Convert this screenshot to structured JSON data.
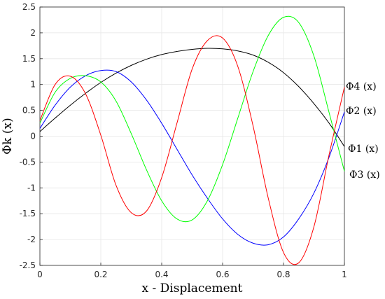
{
  "chart_data": {
    "type": "line",
    "xlabel": "x - Displacement",
    "ylabel": "Φk (x)",
    "xlim": [
      0,
      1
    ],
    "ylim": [
      -2.5,
      2.5
    ],
    "grid": true,
    "x_ticks": [
      "0",
      "0.2",
      "0.4",
      "0.6",
      "0.8",
      "1"
    ],
    "y_ticks": [
      "2.5",
      "2",
      "1.5",
      "1",
      "0.5",
      "0",
      "-0.5",
      "-1",
      "-1.5",
      "-2",
      "-2.5"
    ],
    "x": [
      0,
      0.05,
      0.1,
      0.15,
      0.2,
      0.25,
      0.3,
      0.35,
      0.4,
      0.45,
      0.5,
      0.55,
      0.6,
      0.65,
      0.7,
      0.75,
      0.8,
      0.85,
      0.9,
      0.95,
      1.0
    ],
    "series": [
      {
        "name": "Φ1 (x)",
        "color": "#000000",
        "values": [
          0.09,
          0.35,
          0.6,
          0.83,
          1.04,
          1.22,
          1.37,
          1.49,
          1.58,
          1.64,
          1.68,
          1.7,
          1.69,
          1.65,
          1.57,
          1.43,
          1.23,
          0.96,
          0.63,
          0.25,
          -0.2
        ]
      },
      {
        "name": "Φ2 (x)",
        "color": "#0000ff",
        "values": [
          0.15,
          0.6,
          0.95,
          1.17,
          1.27,
          1.25,
          1.05,
          0.7,
          0.25,
          -0.25,
          -0.75,
          -1.2,
          -1.6,
          -1.9,
          -2.07,
          -2.1,
          -1.95,
          -1.6,
          -1.1,
          -0.4,
          0.47
        ]
      },
      {
        "name": "Φ3 (x)",
        "color": "#00ff00",
        "values": [
          0.25,
          0.85,
          1.12,
          1.17,
          1.05,
          0.68,
          0.05,
          -0.65,
          -1.25,
          -1.6,
          -1.62,
          -1.25,
          -0.55,
          0.35,
          1.25,
          1.95,
          2.3,
          2.2,
          1.55,
          0.45,
          -0.68
        ]
      },
      {
        "name": "Φ4 (x)",
        "color": "#ff0000",
        "values": [
          0.3,
          1.0,
          1.16,
          0.82,
          0.02,
          -0.95,
          -1.48,
          -1.45,
          -0.8,
          0.25,
          1.3,
          1.85,
          1.9,
          1.35,
          0.2,
          -1.2,
          -2.25,
          -2.45,
          -1.75,
          -0.35,
          0.95
        ]
      }
    ]
  }
}
